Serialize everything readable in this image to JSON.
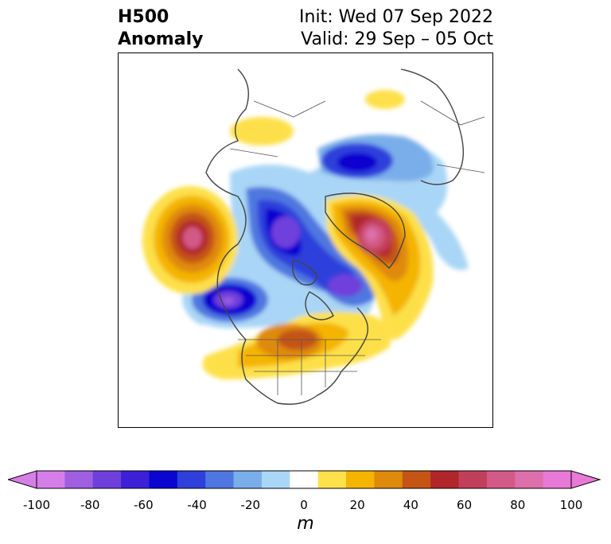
{
  "title": {
    "left_line1": "H500",
    "left_line2": "Anomaly",
    "right_line1": "Init: Wed 07 Sep 2022",
    "right_line2": "Valid: 29 Sep – 05 Oct"
  },
  "colorbar": {
    "unit_label": "m",
    "min": -100,
    "max": 100,
    "extend": "both",
    "ticks": [
      "-100",
      "-80",
      "-60",
      "-40",
      "-20",
      "0",
      "20",
      "40",
      "60",
      "80",
      "100"
    ],
    "colors": [
      "#d67ee8",
      "#a05ee0",
      "#6f3fdc",
      "#3d1fd8",
      "#0a05d0",
      "#2e3fdb",
      "#5077e0",
      "#7aaeea",
      "#a9d6f6",
      "#ffffff",
      "#fde04a",
      "#f4b400",
      "#df8a0a",
      "#c45514",
      "#b1262a",
      "#c23f5c",
      "#d35a86",
      "#dc6fac",
      "#e879d6"
    ],
    "min_color": "#d67ee8",
    "max_color": "#e879d6"
  },
  "map": {
    "projection": "north-polar-stereographic",
    "region": "Northern Hemisphere / North America",
    "coastline_color": "#444444",
    "border_color": "#555555"
  }
}
